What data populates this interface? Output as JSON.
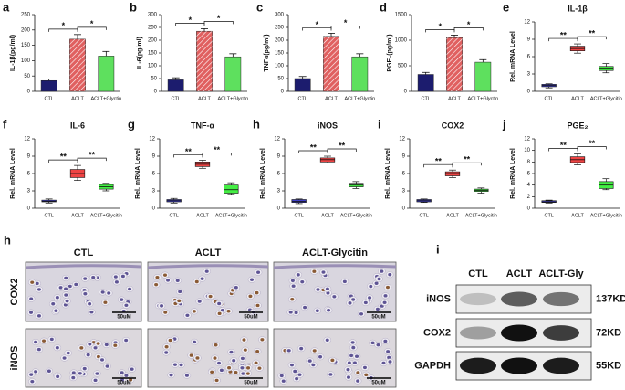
{
  "chart_data": [
    {
      "type": "bar",
      "label": "a",
      "ylabel": "IL-1β(pg/ml)",
      "categories": [
        "CTL",
        "ACLT",
        "ACLT+Glyctin"
      ],
      "values": [
        35,
        170,
        115
      ],
      "errors": [
        5,
        15,
        15
      ],
      "colors": [
        "#1c1c6e",
        "#e06060",
        "#5ee05e"
      ],
      "hatched": [
        false,
        true,
        false
      ],
      "ylim": [
        0,
        250
      ],
      "yticks": [
        0,
        50,
        100,
        150,
        200,
        250
      ],
      "annotations": [
        "*",
        "*"
      ]
    },
    {
      "type": "bar",
      "label": "b",
      "ylabel": "IL-6(pg/ml)",
      "categories": [
        "CTL",
        "ACLT",
        "ACLT+Glyctin"
      ],
      "values": [
        45,
        235,
        135
      ],
      "errors": [
        8,
        10,
        12
      ],
      "colors": [
        "#1c1c6e",
        "#e06060",
        "#5ee05e"
      ],
      "hatched": [
        false,
        true,
        false
      ],
      "ylim": [
        0,
        300
      ],
      "yticks": [
        0,
        50,
        100,
        150,
        200,
        250,
        300
      ],
      "annotations": [
        "*",
        "*"
      ]
    },
    {
      "type": "bar",
      "label": "c",
      "ylabel": "TNFα(pg/ml)",
      "categories": [
        "CTL",
        "ACLT",
        "ACLT+Glyctin"
      ],
      "values": [
        50,
        215,
        135
      ],
      "errors": [
        8,
        12,
        12
      ],
      "colors": [
        "#1c1c6e",
        "#e06060",
        "#5ee05e"
      ],
      "hatched": [
        false,
        true,
        false
      ],
      "ylim": [
        0,
        300
      ],
      "yticks": [
        0,
        50,
        100,
        150,
        200,
        250,
        300
      ],
      "annotations": [
        "*",
        "*"
      ]
    },
    {
      "type": "bar",
      "label": "d",
      "ylabel": "PGE₂(pg/ml)",
      "categories": [
        "CTL",
        "ACLT",
        "ACLT+Glyctin"
      ],
      "values": [
        330,
        1050,
        570
      ],
      "errors": [
        40,
        50,
        50
      ],
      "colors": [
        "#1c1c6e",
        "#e06060",
        "#5ee05e"
      ],
      "hatched": [
        false,
        true,
        false
      ],
      "ylim": [
        0,
        1500
      ],
      "yticks": [
        0,
        500,
        1000,
        1500
      ],
      "annotations": [
        "*",
        "*"
      ]
    },
    {
      "type": "box",
      "label": "e",
      "title": "IL-1β",
      "ylabel": "Rel. mRNA Level",
      "categories": [
        "CTL",
        "ACLT",
        "ACLT+Glycitin"
      ],
      "values": [
        [
          0.6,
          0.8,
          1,
          1.2,
          1.3
        ],
        [
          6.6,
          7,
          7.4,
          7.8,
          8.2
        ],
        [
          3.2,
          3.6,
          4,
          4.3,
          4.8
        ]
      ],
      "colors": [
        "#4040c8",
        "#ee4444",
        "#44ee44"
      ],
      "ylim": [
        0,
        12
      ],
      "yticks": [
        0,
        3,
        6,
        9,
        12
      ],
      "annotations": [
        "**",
        "**"
      ]
    },
    {
      "type": "box",
      "label": "f",
      "title": "IL-6",
      "ylabel": "Rel. mRNA Level",
      "categories": [
        "CTL",
        "ACLT",
        "ACLT+Glycitin"
      ],
      "values": [
        [
          0.9,
          1.1,
          1.2,
          1.4,
          1.6
        ],
        [
          4.8,
          5.3,
          6,
          6.7,
          7.4
        ],
        [
          3,
          3.3,
          3.7,
          4.1,
          4.3
        ]
      ],
      "colors": [
        "#4040c8",
        "#ee4444",
        "#44ee44"
      ],
      "ylim": [
        0,
        12
      ],
      "yticks": [
        0,
        3,
        6,
        9,
        12
      ],
      "annotations": [
        "**",
        "**"
      ]
    },
    {
      "type": "box",
      "label": "g",
      "title": "TNF-α",
      "ylabel": "Rel. mRNA Level",
      "categories": [
        "CTL",
        "ACLT",
        "ACLT+Glycitin"
      ],
      "values": [
        [
          0.9,
          1.1,
          1.3,
          1.5,
          1.7
        ],
        [
          6.9,
          7.2,
          7.6,
          8,
          8.3
        ],
        [
          2.4,
          2.6,
          3.2,
          4,
          4.4
        ]
      ],
      "colors": [
        "#4040c8",
        "#ee4444",
        "#44ee44"
      ],
      "ylim": [
        0,
        12
      ],
      "yticks": [
        0,
        3,
        6,
        9,
        12
      ],
      "annotations": [
        "**",
        "**"
      ]
    },
    {
      "type": "box",
      "label": "h",
      "title": "iNOS",
      "ylabel": "Rel. mRNA Level",
      "categories": [
        "CTL",
        "ACLT",
        "ACLT+Glycitin"
      ],
      "values": [
        [
          0.8,
          1,
          1.2,
          1.5,
          1.6
        ],
        [
          7.8,
          8,
          8.4,
          8.7,
          9
        ],
        [
          3.4,
          3.7,
          4,
          4.3,
          4.6
        ]
      ],
      "colors": [
        "#4040c8",
        "#ee4444",
        "#44ee44"
      ],
      "ylim": [
        0,
        12
      ],
      "yticks": [
        0,
        3,
        6,
        9,
        12
      ],
      "annotations": [
        "**",
        "**"
      ]
    },
    {
      "type": "box",
      "label": "i",
      "title": "COX2",
      "ylabel": "Rel. mRNA Level",
      "categories": [
        "CTL",
        "ACLT",
        "ACLT+Glycitin"
      ],
      "values": [
        [
          1,
          1.1,
          1.3,
          1.5,
          1.6
        ],
        [
          5.3,
          5.6,
          6,
          6.3,
          6.6
        ],
        [
          2.6,
          2.9,
          3.1,
          3.3,
          3.5
        ]
      ],
      "colors": [
        "#4040c8",
        "#ee4444",
        "#44ee44"
      ],
      "ylim": [
        0,
        12
      ],
      "yticks": [
        0,
        3,
        6,
        9,
        12
      ],
      "annotations": [
        "**",
        "**"
      ]
    },
    {
      "type": "box",
      "label": "j",
      "title": "PGE₂",
      "ylabel": "Rel. mRNA Level",
      "categories": [
        "CTL",
        "ACLT",
        "ACLT+Glycitin"
      ],
      "values": [
        [
          0.9,
          1,
          1.1,
          1.3,
          1.4
        ],
        [
          7.5,
          7.9,
          8.4,
          8.9,
          9.4
        ],
        [
          3.2,
          3.4,
          4,
          4.6,
          5.1
        ]
      ],
      "colors": [
        "#4040c8",
        "#ee4444",
        "#44ee44"
      ],
      "ylim": [
        0,
        12
      ],
      "yticks": [
        0,
        2,
        4,
        6,
        8,
        10,
        12
      ],
      "annotations": [
        "**",
        "**"
      ]
    }
  ],
  "histology": {
    "label": "h",
    "columns": [
      "CTL",
      "ACLT",
      "ACLT-Glycitin"
    ],
    "rows": [
      "COX2",
      "iNOS"
    ],
    "scale_bars": [
      [
        "50uM",
        "50uM",
        "50uM"
      ],
      [
        "50uM",
        "50uM",
        "50uM"
      ]
    ]
  },
  "western_blot": {
    "label": "i",
    "columns": [
      "CTL",
      "ACLT",
      "ACLT-Gly"
    ],
    "rows": [
      "iNOS",
      "COX2",
      "GAPDH"
    ],
    "weights": [
      "137KD",
      "72KD",
      "55KD"
    ]
  }
}
